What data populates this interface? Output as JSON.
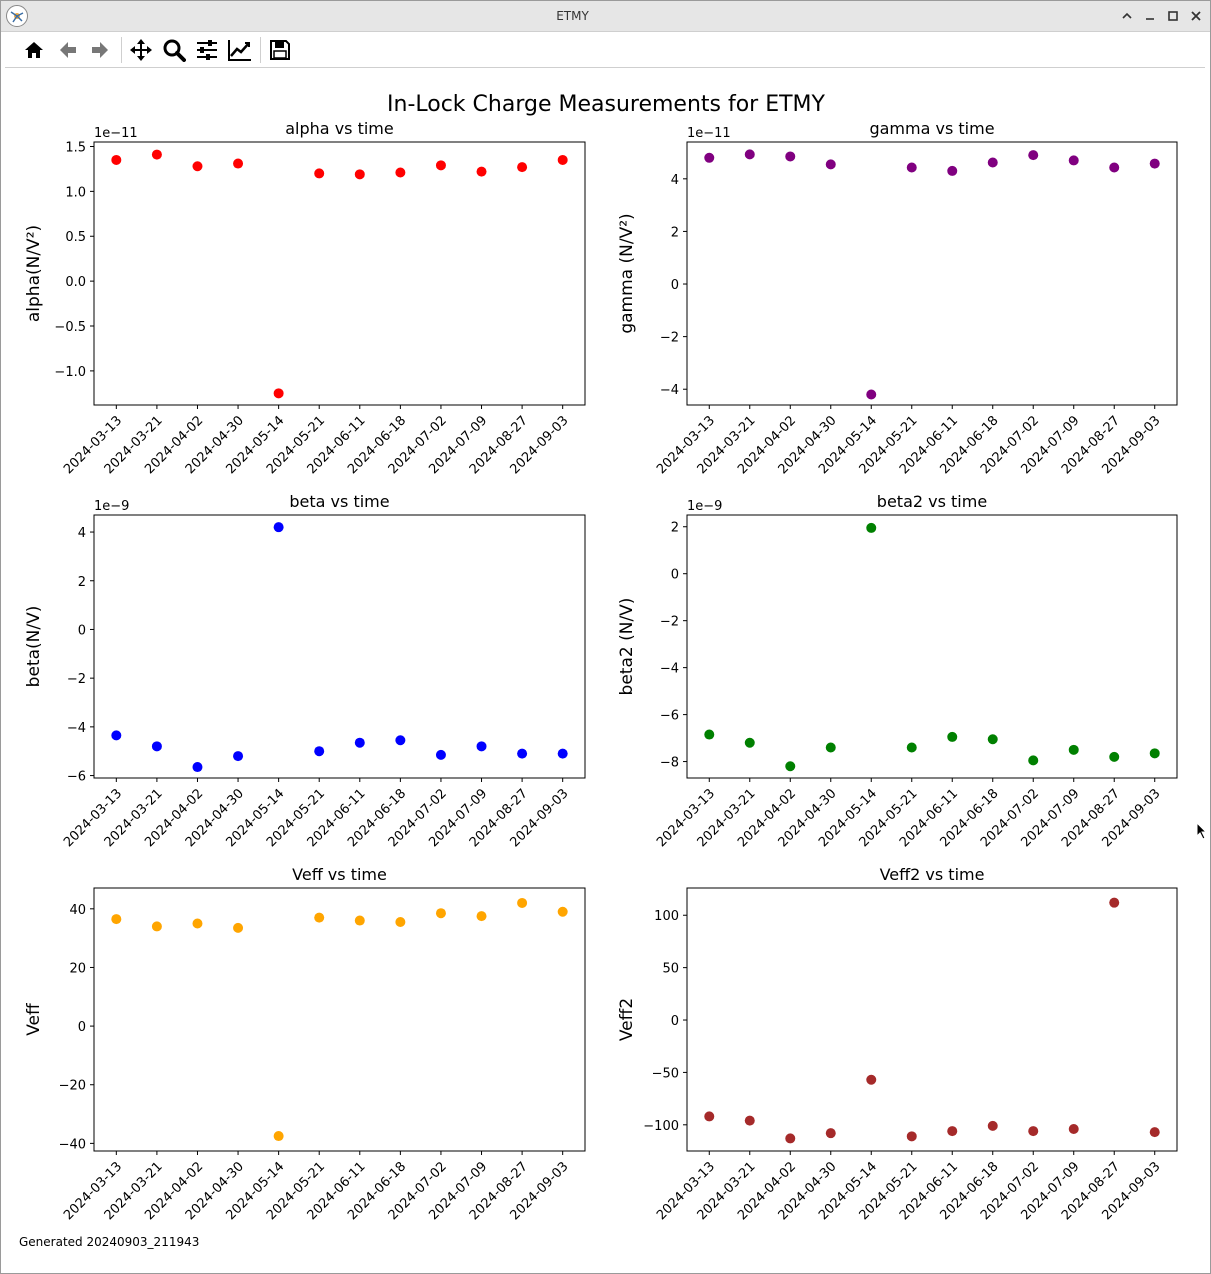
{
  "window": {
    "title": "ETMY"
  },
  "toolbar": {
    "buttons": [
      {
        "name": "home-icon"
      },
      {
        "name": "back-icon"
      },
      {
        "name": "forward-icon"
      },
      {
        "name": "pan-icon"
      },
      {
        "name": "zoom-icon"
      },
      {
        "name": "configure-subplots-icon"
      },
      {
        "name": "edit-axis-icon"
      },
      {
        "name": "save-icon"
      }
    ]
  },
  "figure": {
    "suptitle": "In-Lock Charge Measurements for ETMY",
    "footer": "Generated 20240903_211943"
  },
  "chart_data": [
    {
      "type": "scatter",
      "title": "alpha vs time",
      "xlabel": "",
      "ylabel": "alpha(N/V²)",
      "offset_text": "1e−11",
      "color": "#ff0000",
      "x": [
        "2024-03-13",
        "2024-03-21",
        "2024-04-02",
        "2024-04-30",
        "2024-05-14",
        "2024-05-21",
        "2024-06-11",
        "2024-06-18",
        "2024-07-02",
        "2024-07-09",
        "2024-08-27",
        "2024-09-03"
      ],
      "y": [
        1.35,
        1.41,
        1.28,
        1.31,
        -1.25,
        1.2,
        1.19,
        1.21,
        1.29,
        1.22,
        1.27,
        1.35
      ],
      "ylim": [
        -1.38,
        1.55
      ],
      "yticks": [
        -1.0,
        -0.5,
        0.0,
        0.5,
        1.0,
        1.5
      ],
      "ytick_labels": [
        "−1.0",
        "−0.5",
        "0.0",
        "0.5",
        "1.0",
        "1.5"
      ],
      "grid": false
    },
    {
      "type": "scatter",
      "title": "gamma vs time",
      "xlabel": "",
      "ylabel": "gamma (N/V²)",
      "offset_text": "1e−11",
      "color": "#800080",
      "x": [
        "2024-03-13",
        "2024-03-21",
        "2024-04-02",
        "2024-04-30",
        "2024-05-14",
        "2024-05-21",
        "2024-06-11",
        "2024-06-18",
        "2024-07-02",
        "2024-07-09",
        "2024-08-27",
        "2024-09-03"
      ],
      "y": [
        4.8,
        4.93,
        4.85,
        4.55,
        -4.2,
        4.43,
        4.3,
        4.62,
        4.9,
        4.7,
        4.43,
        4.58
      ],
      "ylim": [
        -4.6,
        5.4
      ],
      "yticks": [
        -4,
        -2,
        0,
        2,
        4
      ],
      "ytick_labels": [
        "−4",
        "−2",
        "0",
        "2",
        "4"
      ],
      "grid": false
    },
    {
      "type": "scatter",
      "title": "beta vs time",
      "xlabel": "",
      "ylabel": "beta(N/V)",
      "offset_text": "1e−9",
      "color": "#0000ff",
      "x": [
        "2024-03-13",
        "2024-03-21",
        "2024-04-02",
        "2024-04-30",
        "2024-05-14",
        "2024-05-21",
        "2024-06-11",
        "2024-06-18",
        "2024-07-02",
        "2024-07-09",
        "2024-08-27",
        "2024-09-03"
      ],
      "y": [
        -4.35,
        -4.8,
        -5.65,
        -5.2,
        4.2,
        -5.0,
        -4.65,
        -4.55,
        -5.15,
        -4.8,
        -5.1,
        -5.1
      ],
      "ylim": [
        -6.1,
        4.7
      ],
      "yticks": [
        -6,
        -4,
        -2,
        0,
        2,
        4
      ],
      "ytick_labels": [
        "−6",
        "−4",
        "−2",
        "0",
        "2",
        "4"
      ],
      "grid": false
    },
    {
      "type": "scatter",
      "title": "beta2 vs time",
      "xlabel": "",
      "ylabel": "beta2 (N/V)",
      "offset_text": "1e−9",
      "color": "#008000",
      "x": [
        "2024-03-13",
        "2024-03-21",
        "2024-04-02",
        "2024-04-30",
        "2024-05-14",
        "2024-05-21",
        "2024-06-11",
        "2024-06-18",
        "2024-07-02",
        "2024-07-09",
        "2024-08-27",
        "2024-09-03"
      ],
      "y": [
        -6.85,
        -7.2,
        -8.2,
        -7.4,
        1.95,
        -7.4,
        -6.95,
        -7.05,
        -7.95,
        -7.5,
        -7.8,
        -7.65
      ],
      "ylim": [
        -8.7,
        2.5
      ],
      "yticks": [
        -8,
        -6,
        -4,
        -2,
        0,
        2
      ],
      "ytick_labels": [
        "−8",
        "−6",
        "−4",
        "−2",
        "0",
        "2"
      ],
      "grid": false
    },
    {
      "type": "scatter",
      "title": "Veff vs time",
      "xlabel": "",
      "ylabel": "Veff",
      "offset_text": "",
      "color": "#ffa500",
      "x": [
        "2024-03-13",
        "2024-03-21",
        "2024-04-02",
        "2024-04-30",
        "2024-05-14",
        "2024-05-21",
        "2024-06-11",
        "2024-06-18",
        "2024-07-02",
        "2024-07-09",
        "2024-08-27",
        "2024-09-03"
      ],
      "y": [
        36.5,
        34.0,
        35.0,
        33.5,
        -37.5,
        37.0,
        36.0,
        35.5,
        38.5,
        37.5,
        42.0,
        39.0
      ],
      "ylim": [
        -42.6,
        47.1
      ],
      "yticks": [
        -40,
        -20,
        0,
        20,
        40
      ],
      "ytick_labels": [
        "−40",
        "−20",
        "0",
        "20",
        "40"
      ],
      "grid": false
    },
    {
      "type": "scatter",
      "title": "Veff2 vs time",
      "xlabel": "",
      "ylabel": "Veff2",
      "offset_text": "",
      "color": "#a52a2a",
      "x": [
        "2024-03-13",
        "2024-03-21",
        "2024-04-02",
        "2024-04-30",
        "2024-05-14",
        "2024-05-21",
        "2024-06-11",
        "2024-06-18",
        "2024-07-02",
        "2024-07-09",
        "2024-08-27",
        "2024-09-03"
      ],
      "y": [
        -92,
        -96,
        -113,
        -108,
        -57,
        -111,
        -106,
        -101,
        -106,
        -104,
        112,
        -107
      ],
      "ylim": [
        -125,
        126
      ],
      "yticks": [
        -100,
        -50,
        0,
        50,
        100
      ],
      "ytick_labels": [
        "−100",
        "−50",
        "0",
        "50",
        "100"
      ],
      "grid": false
    }
  ]
}
